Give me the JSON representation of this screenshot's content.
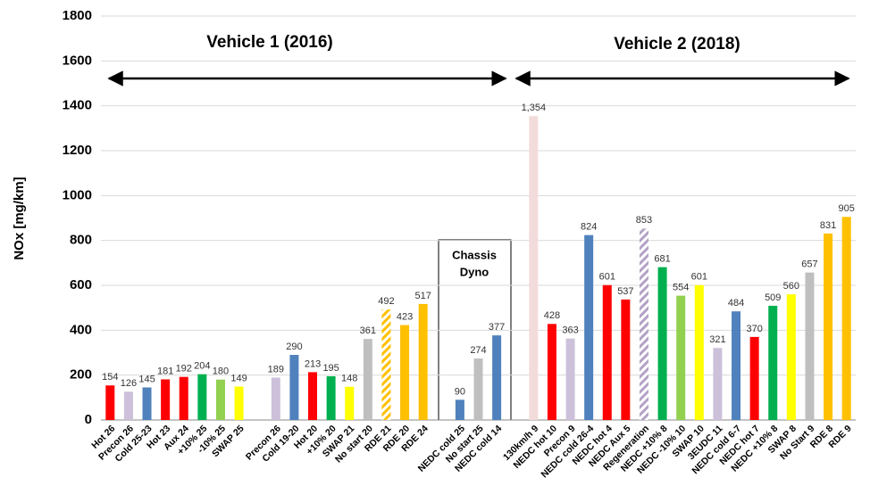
{
  "chart_data": {
    "type": "bar",
    "y_label": "NOx [mg/km]",
    "annotations": [
      "Vehicle 1 (2016)",
      "Vehicle 2 (2018)",
      "Chassis",
      "Dyno"
    ],
    "categories": [
      "Hot 26",
      "Precon 26",
      "Cold 25-23",
      "Hot 23",
      "Aux 24",
      "+10% 25",
      "-10% 25",
      "SWAP 25",
      null,
      "Precon 26",
      "Cold 19-20",
      "Hot 20",
      "+10% 20",
      "SWAP 21",
      "No start 20",
      "RDE 21",
      "RDE 20",
      "RDE 24",
      null,
      "NEDC cold 25",
      "No start 25",
      "NEDC cold 14",
      null,
      "130km/h 9",
      "NEDC hot 10",
      "Precon 9",
      "NEDC cold 26-4",
      "NEDC hot 4",
      "NEDC Aux 5",
      "Regeneration",
      "NEDC +10% 8",
      "NEDC -10% 10",
      "SWAP 10",
      "3EUDC 11",
      "NEDC cold 6-7",
      "NEDC hot 7",
      "NEDC +10% 8",
      "SWAP 8",
      "No Start 9",
      "RDE 8",
      "RDE 9"
    ],
    "values": [
      154,
      126,
      145,
      181,
      192,
      204,
      180,
      149,
      null,
      189,
      290,
      213,
      195,
      148,
      361,
      492,
      423,
      517,
      null,
      90,
      274,
      377,
      null,
      1354,
      428,
      363,
      824,
      601,
      537,
      853,
      681,
      554,
      601,
      321,
      484,
      370,
      509,
      560,
      657,
      831,
      905
    ],
    "value_labels": [
      "154",
      "126",
      "145",
      "181",
      "192",
      "204",
      "180",
      "149",
      null,
      "189",
      "290",
      "213",
      "195",
      "148",
      "361",
      "492",
      "423",
      "517",
      null,
      "90",
      "274",
      "377",
      null,
      "1,354",
      "428",
      "363",
      "824",
      "601",
      "537",
      "853",
      "681",
      "554",
      "601",
      "321",
      "484",
      "370",
      "509",
      "560",
      "657",
      "831",
      "905"
    ],
    "colors": [
      "#ff0000",
      "#ccc0da",
      "#4f81bd",
      "#ff0000",
      "#ff0000",
      "#00b050",
      "#92d050",
      "#ffff00",
      null,
      "#ccc0da",
      "#4f81bd",
      "#ff0000",
      "#00b050",
      "#ffff00",
      "#bfbfbf",
      "#ffc000",
      "#ffc000",
      "#ffc000",
      null,
      "#4f81bd",
      "#bfbfbf",
      "#4f81bd",
      null,
      "#f2dcdb",
      "#ff0000",
      "#ccc0da",
      "#4f81bd",
      "#ff0000",
      "#ff0000",
      "#b3a2c7",
      "#00b050",
      "#92d050",
      "#ffff00",
      "#ccc0da",
      "#4f81bd",
      "#ff0000",
      "#00b050",
      "#ffff00",
      "#bfbfbf",
      "#ffc000",
      "#ffc000"
    ],
    "hatched": [
      false,
      false,
      false,
      false,
      false,
      false,
      false,
      false,
      null,
      false,
      false,
      false,
      false,
      false,
      false,
      true,
      false,
      false,
      null,
      false,
      false,
      false,
      null,
      false,
      false,
      false,
      false,
      false,
      false,
      true,
      false,
      false,
      false,
      false,
      false,
      false,
      false,
      false,
      false,
      false,
      false
    ],
    "ylim": [
      0,
      1800
    ],
    "yticks": [
      0,
      200,
      400,
      600,
      800,
      1000,
      1200,
      1400,
      1600,
      1800
    ],
    "grid": true
  }
}
